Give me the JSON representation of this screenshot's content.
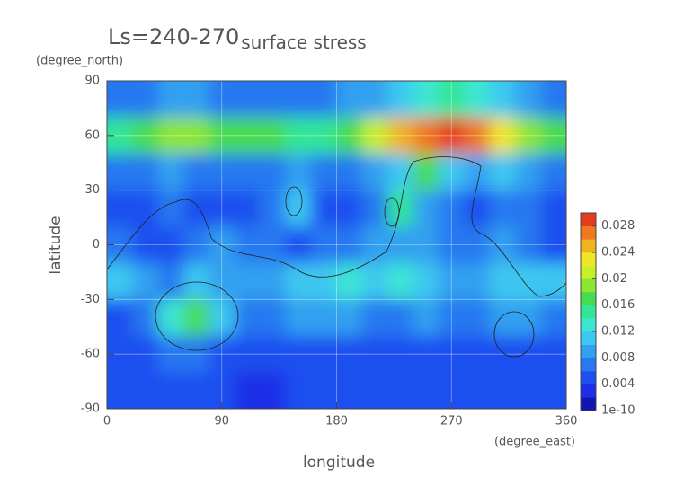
{
  "chart_data": {
    "type": "contour",
    "title": "Ls=240-270",
    "subtitle": "surface stress",
    "x_label": "longitude",
    "y_label": "latitude",
    "x_unit": "(degree_east)",
    "y_unit": "(degree_north)",
    "x": [
      10,
      30,
      50,
      70,
      90,
      110,
      130,
      150,
      170,
      190,
      210,
      230,
      250,
      270,
      290,
      310,
      330,
      350
    ],
    "y": [
      80,
      60,
      40,
      20,
      0,
      -20,
      -40,
      -60,
      -80
    ],
    "values": [
      [
        0.006,
        0.006,
        0.008,
        0.008,
        0.006,
        0.006,
        0.006,
        0.006,
        0.006,
        0.008,
        0.008,
        0.01,
        0.012,
        0.014,
        0.012,
        0.01,
        0.008,
        0.006
      ],
      [
        0.014,
        0.016,
        0.018,
        0.018,
        0.016,
        0.016,
        0.016,
        0.014,
        0.014,
        0.016,
        0.02,
        0.024,
        0.026,
        0.028,
        0.026,
        0.022,
        0.018,
        0.016
      ],
      [
        0.006,
        0.006,
        0.008,
        0.006,
        0.006,
        0.006,
        0.006,
        0.008,
        0.006,
        0.006,
        0.008,
        0.01,
        0.016,
        0.01,
        0.008,
        0.01,
        0.008,
        0.006
      ],
      [
        0.004,
        0.004,
        0.006,
        0.004,
        0.004,
        0.004,
        0.006,
        0.01,
        0.004,
        0.004,
        0.006,
        0.014,
        0.008,
        0.006,
        0.004,
        0.006,
        0.006,
        0.004
      ],
      [
        0.006,
        0.004,
        0.004,
        0.006,
        0.008,
        0.006,
        0.006,
        0.004,
        0.006,
        0.006,
        0.008,
        0.008,
        0.008,
        0.006,
        0.006,
        0.008,
        0.006,
        0.004
      ],
      [
        0.01,
        0.008,
        0.006,
        0.01,
        0.008,
        0.008,
        0.008,
        0.01,
        0.01,
        0.012,
        0.01,
        0.012,
        0.01,
        0.008,
        0.008,
        0.01,
        0.01,
        0.01
      ],
      [
        0.004,
        0.006,
        0.012,
        0.016,
        0.01,
        0.006,
        0.006,
        0.008,
        0.008,
        0.008,
        0.006,
        0.006,
        0.008,
        0.006,
        0.006,
        0.008,
        0.008,
        0.006
      ],
      [
        0.004,
        0.004,
        0.006,
        0.006,
        0.004,
        0.004,
        0.004,
        0.004,
        0.004,
        0.004,
        0.004,
        0.004,
        0.004,
        0.004,
        0.004,
        0.004,
        0.004,
        0.004
      ],
      [
        0.004,
        0.004,
        0.004,
        0.004,
        0.004,
        0.002,
        0.002,
        0.004,
        0.004,
        0.004,
        0.004,
        0.004,
        0.004,
        0.004,
        0.004,
        0.004,
        0.004,
        0.004
      ]
    ],
    "xlim": [
      0,
      360
    ],
    "ylim": [
      -90,
      90
    ],
    "xticks": [
      0,
      90,
      180,
      270,
      360
    ],
    "yticks": [
      -90,
      -60,
      -30,
      0,
      30,
      60,
      90
    ],
    "grid": true,
    "colorbar": {
      "lim": [
        0,
        0.03
      ],
      "ticks": [
        {
          "value": 1e-10,
          "label": "1e-10"
        },
        0.004,
        0.008,
        0.012,
        0.016,
        0.02,
        0.024,
        0.028
      ],
      "colors": [
        "#1414b4",
        "#1e2de6",
        "#1e50f0",
        "#2878f0",
        "#32a0f0",
        "#3cc8f0",
        "#3ce6d2",
        "#32e696",
        "#46dc50",
        "#8ce632",
        "#c8f028",
        "#f0e628",
        "#f0b41e",
        "#f0781e",
        "#e63c1e"
      ]
    }
  }
}
